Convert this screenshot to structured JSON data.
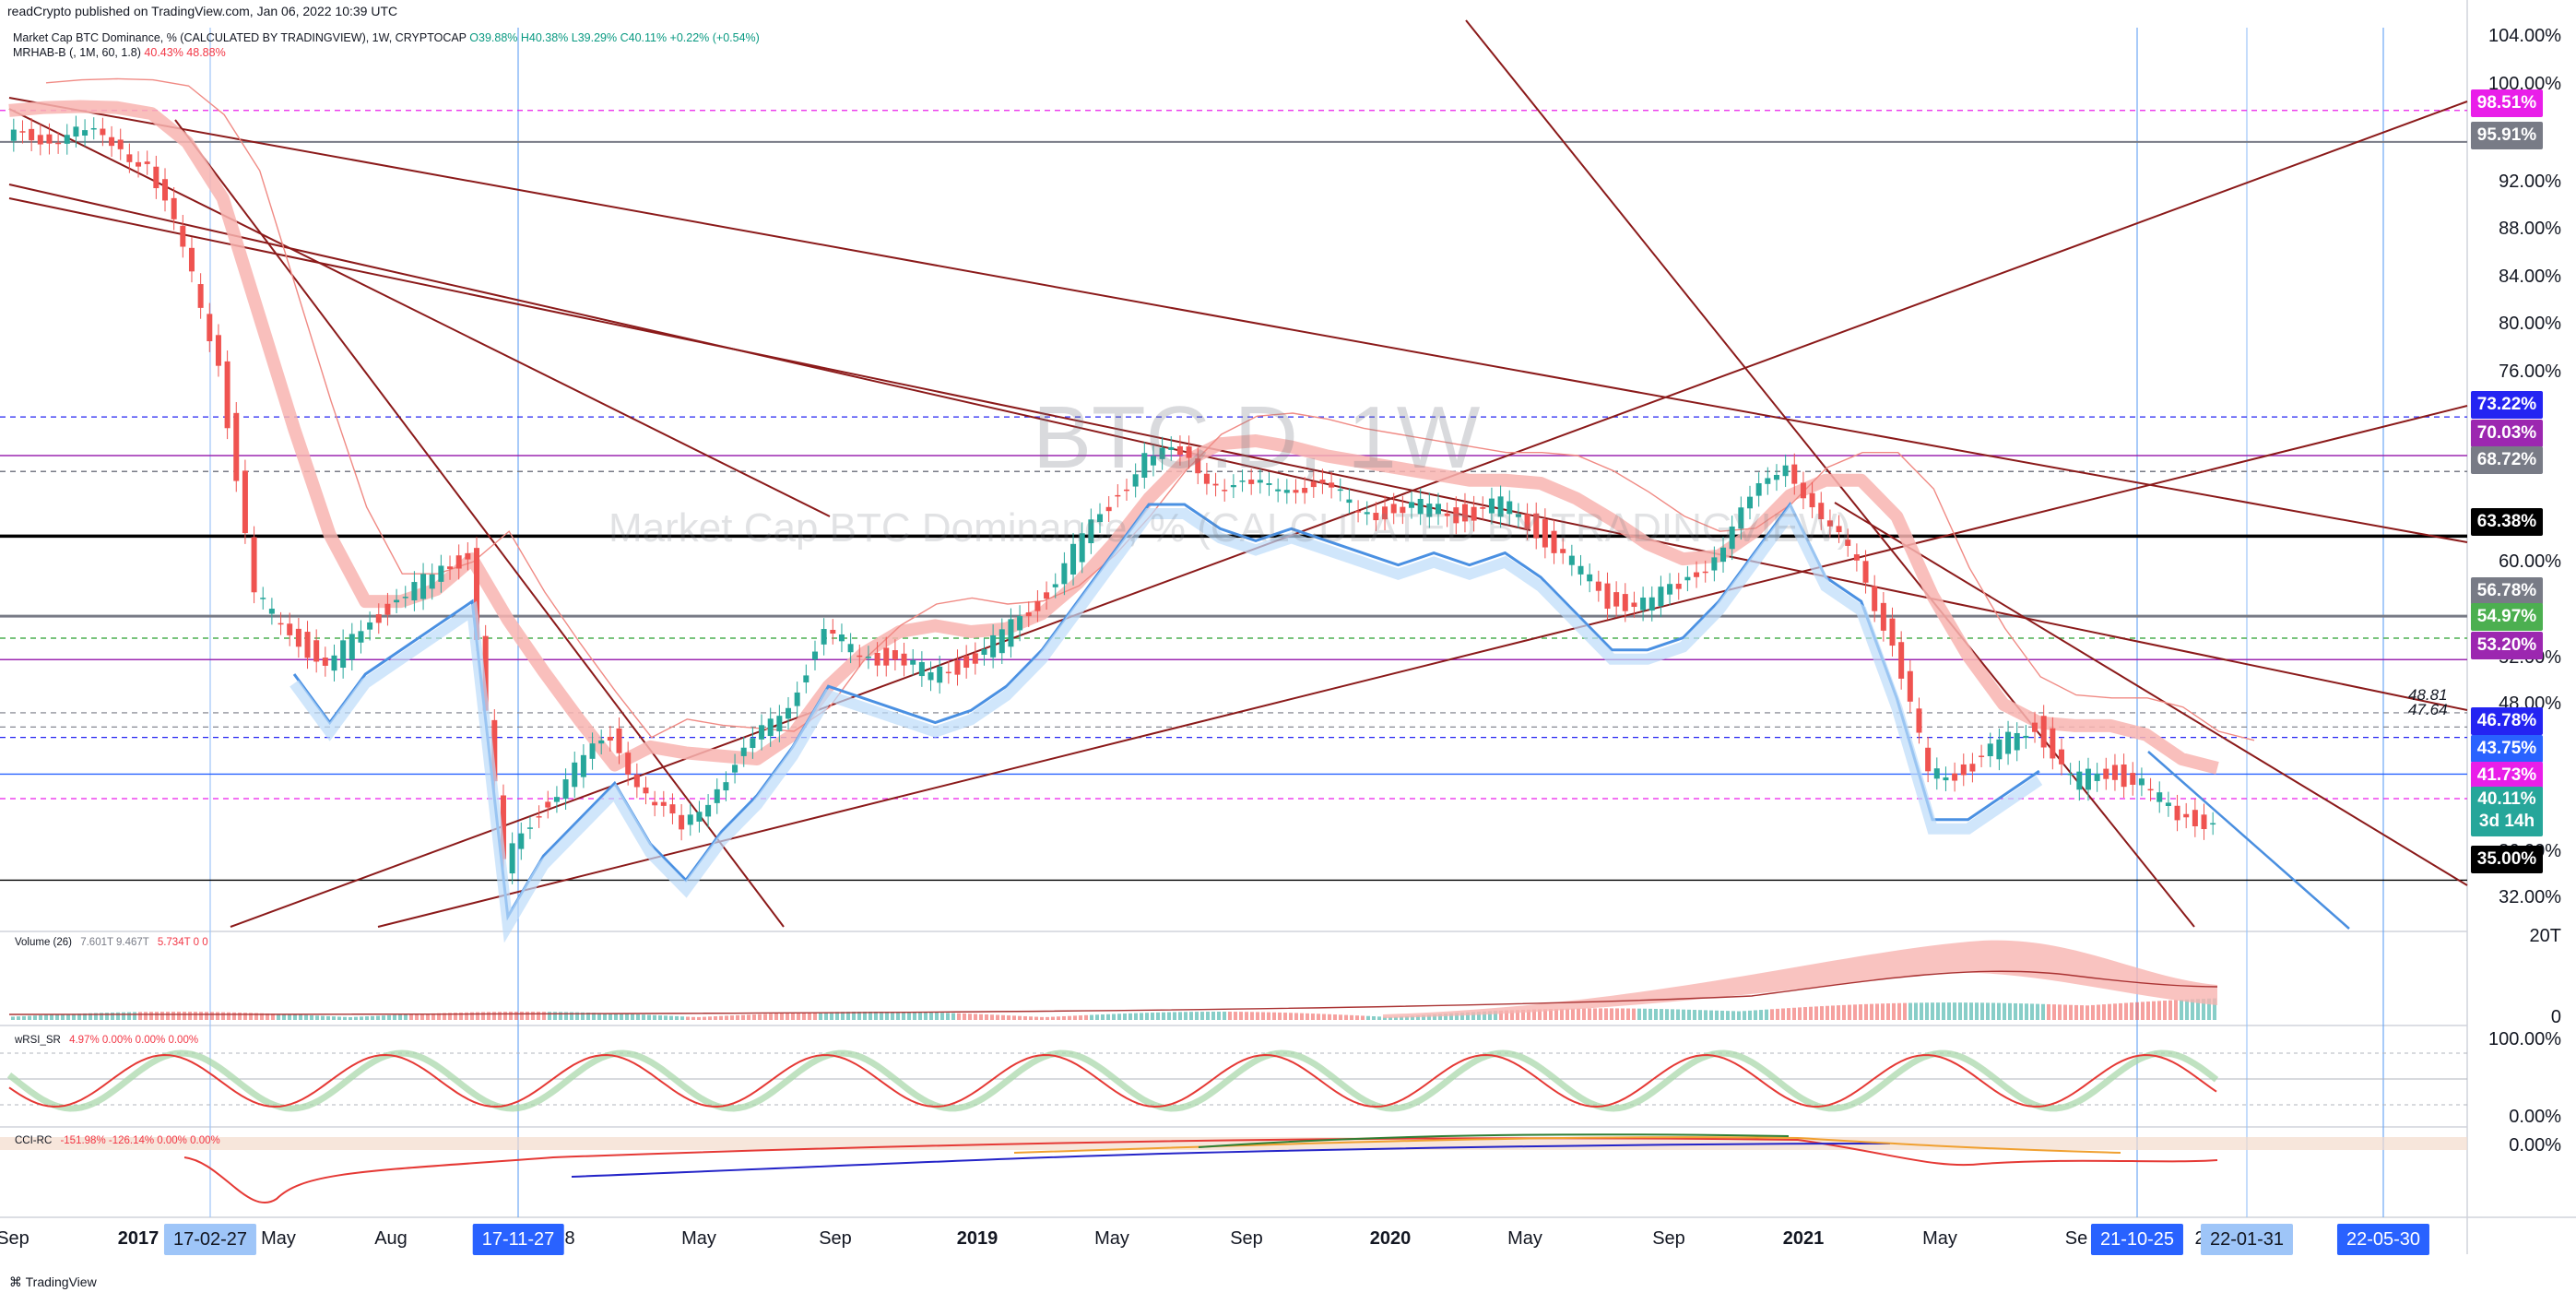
{
  "header": {
    "published": "readCrypto published on TradingView.com, Jan 06, 2022 10:39 UTC",
    "symbol_line": "Market Cap BTC Dominance, % (CALCULATED BY TRADINGVIEW), 1W, CRYPTOCAP",
    "ohlc": "O39.88% H40.38% L39.29% C40.11% +0.22% (+0.54%)",
    "indicator": "MRHAB-B (, 1M, 60, 1.8)",
    "indicator_values": "40.43% 48.88%"
  },
  "watermark": {
    "symbol": "BTC.D, 1W",
    "name": "Market Cap BTC Dominance, % (CALCULATED BY TRADINGVIEW)"
  },
  "panes": {
    "volume": {
      "label": "Volume (26)",
      "values": "5.734T  0  0",
      "value_extra": "7.601T  9.467T",
      "axis_top": "20T",
      "axis_bottom": "0"
    },
    "rsi": {
      "label": "wRSI_SR",
      "values": "4.97%  0.00%  0.00%  0.00%",
      "axis_top": "100.00%",
      "axis_bottom": "0.00%"
    },
    "cci": {
      "label": "CCI-RC",
      "values": "-151.98%  -126.14%  0.00%  0.00%",
      "axis_label": "0.00%"
    }
  },
  "price_axis": {
    "ticks": [
      "104.00%",
      "100.00%",
      "92.00%",
      "88.00%",
      "84.00%",
      "80.00%",
      "76.00%",
      "60.00%",
      "52.00%",
      "48.00%",
      "36.00%",
      "32.00%"
    ]
  },
  "price_tags": [
    {
      "text": "98.51%",
      "color": "#e91ee9"
    },
    {
      "text": "95.91%",
      "color": "#787b86"
    },
    {
      "text": "73.22%",
      "color": "#2424f2"
    },
    {
      "text": "70.03%",
      "color": "#9c27b0"
    },
    {
      "text": "68.72%",
      "color": "#787b86"
    },
    {
      "text": "63.38%",
      "color": "#000000"
    },
    {
      "text": "56.78%",
      "color": "#787b86"
    },
    {
      "text": "54.97%",
      "color": "#4caf50"
    },
    {
      "text": "53.20%",
      "color": "#9c27b0"
    },
    {
      "text": "46.78%",
      "color": "#2424f2"
    },
    {
      "text": "43.75%",
      "color": "#2962ff"
    },
    {
      "text": "41.73%",
      "color": "#e91ee9"
    },
    {
      "text": "40.11%",
      "color": "#26a69a",
      "sub": "3d 14h"
    },
    {
      "text": "35.00%",
      "color": "#000000"
    }
  ],
  "side_labels": {
    "a": "48.81",
    "b": "47.64"
  },
  "time_axis": {
    "labels": [
      "Sep",
      "2017",
      "May",
      "Aug",
      "8",
      "May",
      "Sep",
      "2019",
      "May",
      "Sep",
      "2020",
      "May",
      "Sep",
      "2021",
      "May",
      "Se",
      "2"
    ],
    "highlights": [
      {
        "text": "17-02-27",
        "color": "#9ec5f8",
        "text_color": "#131722"
      },
      {
        "text": "17-11-27",
        "color": "#2962ff",
        "text_color": "#ffffff"
      },
      {
        "text": "21-10-25",
        "color": "#2962ff",
        "text_color": "#ffffff"
      },
      {
        "text": "22-01-31",
        "color": "#9ec5f8",
        "text_color": "#131722"
      },
      {
        "text": "22-05-30",
        "color": "#2962ff",
        "text_color": "#ffffff"
      }
    ]
  },
  "footer": "TradingView",
  "chart_data": {
    "type": "line",
    "title": "Market Cap BTC Dominance, % (CALCULATED BY TRADINGVIEW), 1W, CRYPTOCAP",
    "xlabel": "",
    "ylabel": "",
    "ylim": [
      30,
      104
    ],
    "grid": false,
    "x": [
      "2016-09",
      "2016-11",
      "2017-01",
      "2017-02",
      "2017-03",
      "2017-04",
      "2017-05",
      "2017-06",
      "2017-07",
      "2017-08",
      "2017-09",
      "2017-10",
      "2017-11",
      "2017-12",
      "2018-01",
      "2018-02",
      "2018-03",
      "2018-04",
      "2018-05",
      "2018-06",
      "2018-07",
      "2018-08",
      "2018-09",
      "2018-10",
      "2018-11",
      "2018-12",
      "2019-01",
      "2019-02",
      "2019-03",
      "2019-04",
      "2019-05",
      "2019-06",
      "2019-07",
      "2019-08",
      "2019-09",
      "2019-10",
      "2019-11",
      "2019-12",
      "2020-01",
      "2020-02",
      "2020-03",
      "2020-04",
      "2020-05",
      "2020-06",
      "2020-07",
      "2020-08",
      "2020-09",
      "2020-10",
      "2020-11",
      "2020-12",
      "2021-01",
      "2021-02",
      "2021-03",
      "2021-04",
      "2021-05",
      "2021-06",
      "2021-07",
      "2021-08",
      "2021-09",
      "2021-10",
      "2021-11",
      "2021-12",
      "2022-01"
    ],
    "series": [
      {
        "values": [
          96,
          96.5,
          96.5,
          96,
          94,
          87,
          78,
          58,
          56,
          52,
          56,
          58,
          60,
          62,
          36,
          41,
          44,
          47,
          42,
          39,
          43,
          46,
          50,
          55,
          54,
          53,
          52,
          53,
          55,
          58,
          62,
          66,
          70,
          70,
          68,
          67,
          68,
          67,
          66,
          65,
          66,
          65,
          66,
          64,
          61,
          58,
          58,
          59,
          62,
          66,
          70,
          64,
          62,
          54,
          44,
          44,
          46,
          48,
          43,
          44,
          43,
          40,
          40
        ]
      }
    ]
  }
}
